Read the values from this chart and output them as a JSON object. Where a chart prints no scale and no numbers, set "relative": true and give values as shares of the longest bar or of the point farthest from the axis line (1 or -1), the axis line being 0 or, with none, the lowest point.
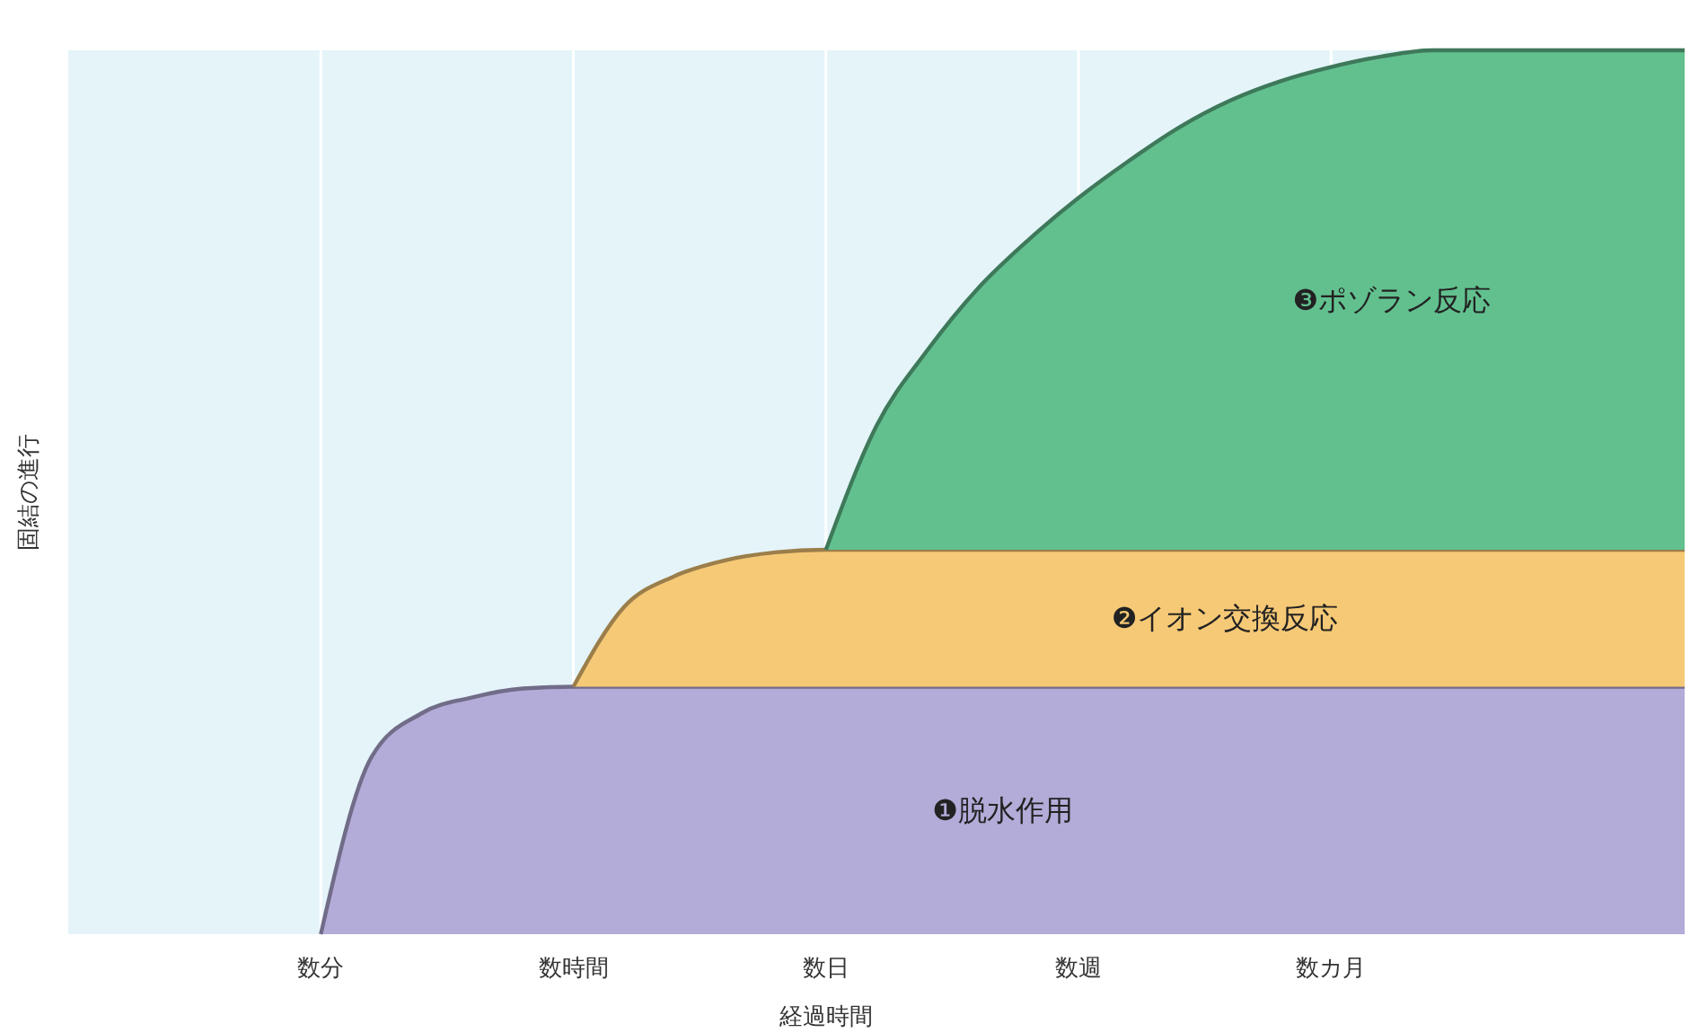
{
  "chart_data": {
    "type": "area",
    "stacked": true,
    "relative": true,
    "xlabel": "経過時間",
    "annotations": [
      "固結の進行"
    ],
    "grid": "x",
    "categories": [
      "数分",
      null,
      null,
      null,
      null,
      "数時間",
      null,
      null,
      null,
      null,
      "数日",
      null,
      null,
      null,
      null,
      "数週",
      null,
      null,
      null,
      null,
      "数カ月",
      null,
      null,
      null,
      null,
      null,
      null,
      null
    ],
    "series": [
      {
        "name": "❶脱水作用",
        "color": "#b3abd8",
        "values": [
          0,
          0.2,
          0.25,
          0.268,
          0.278,
          0.28,
          0.28,
          0.28,
          0.28,
          0.28,
          0.28,
          0.28,
          0.28,
          0.28,
          0.28,
          0.28,
          0.28,
          0.28,
          0.28,
          0.28,
          0.28,
          0.28,
          0.28,
          0.28,
          0.28,
          0.28,
          0.28,
          0.28
        ]
      },
      {
        "name": "❷イオン交換反応",
        "color": "#f6c976",
        "values": [
          null,
          null,
          null,
          null,
          null,
          0,
          0.09,
          0.125,
          0.143,
          0.152,
          0.155,
          0.155,
          0.155,
          0.155,
          0.155,
          0.155,
          0.155,
          0.155,
          0.155,
          0.155,
          0.155,
          0.155,
          0.155,
          0.155,
          0.155,
          0.155,
          0.155,
          0.155
        ]
      },
      {
        "name": "❸ポゾラン反応",
        "color": "#62c08f",
        "values": [
          null,
          null,
          null,
          null,
          null,
          null,
          null,
          null,
          null,
          null,
          0,
          0.14,
          0.225,
          0.295,
          0.35,
          0.398,
          0.44,
          0.478,
          0.508,
          0.53,
          0.546,
          0.558,
          0.565,
          0.565,
          0.565,
          0.565,
          0.565,
          0.565
        ]
      }
    ]
  }
}
